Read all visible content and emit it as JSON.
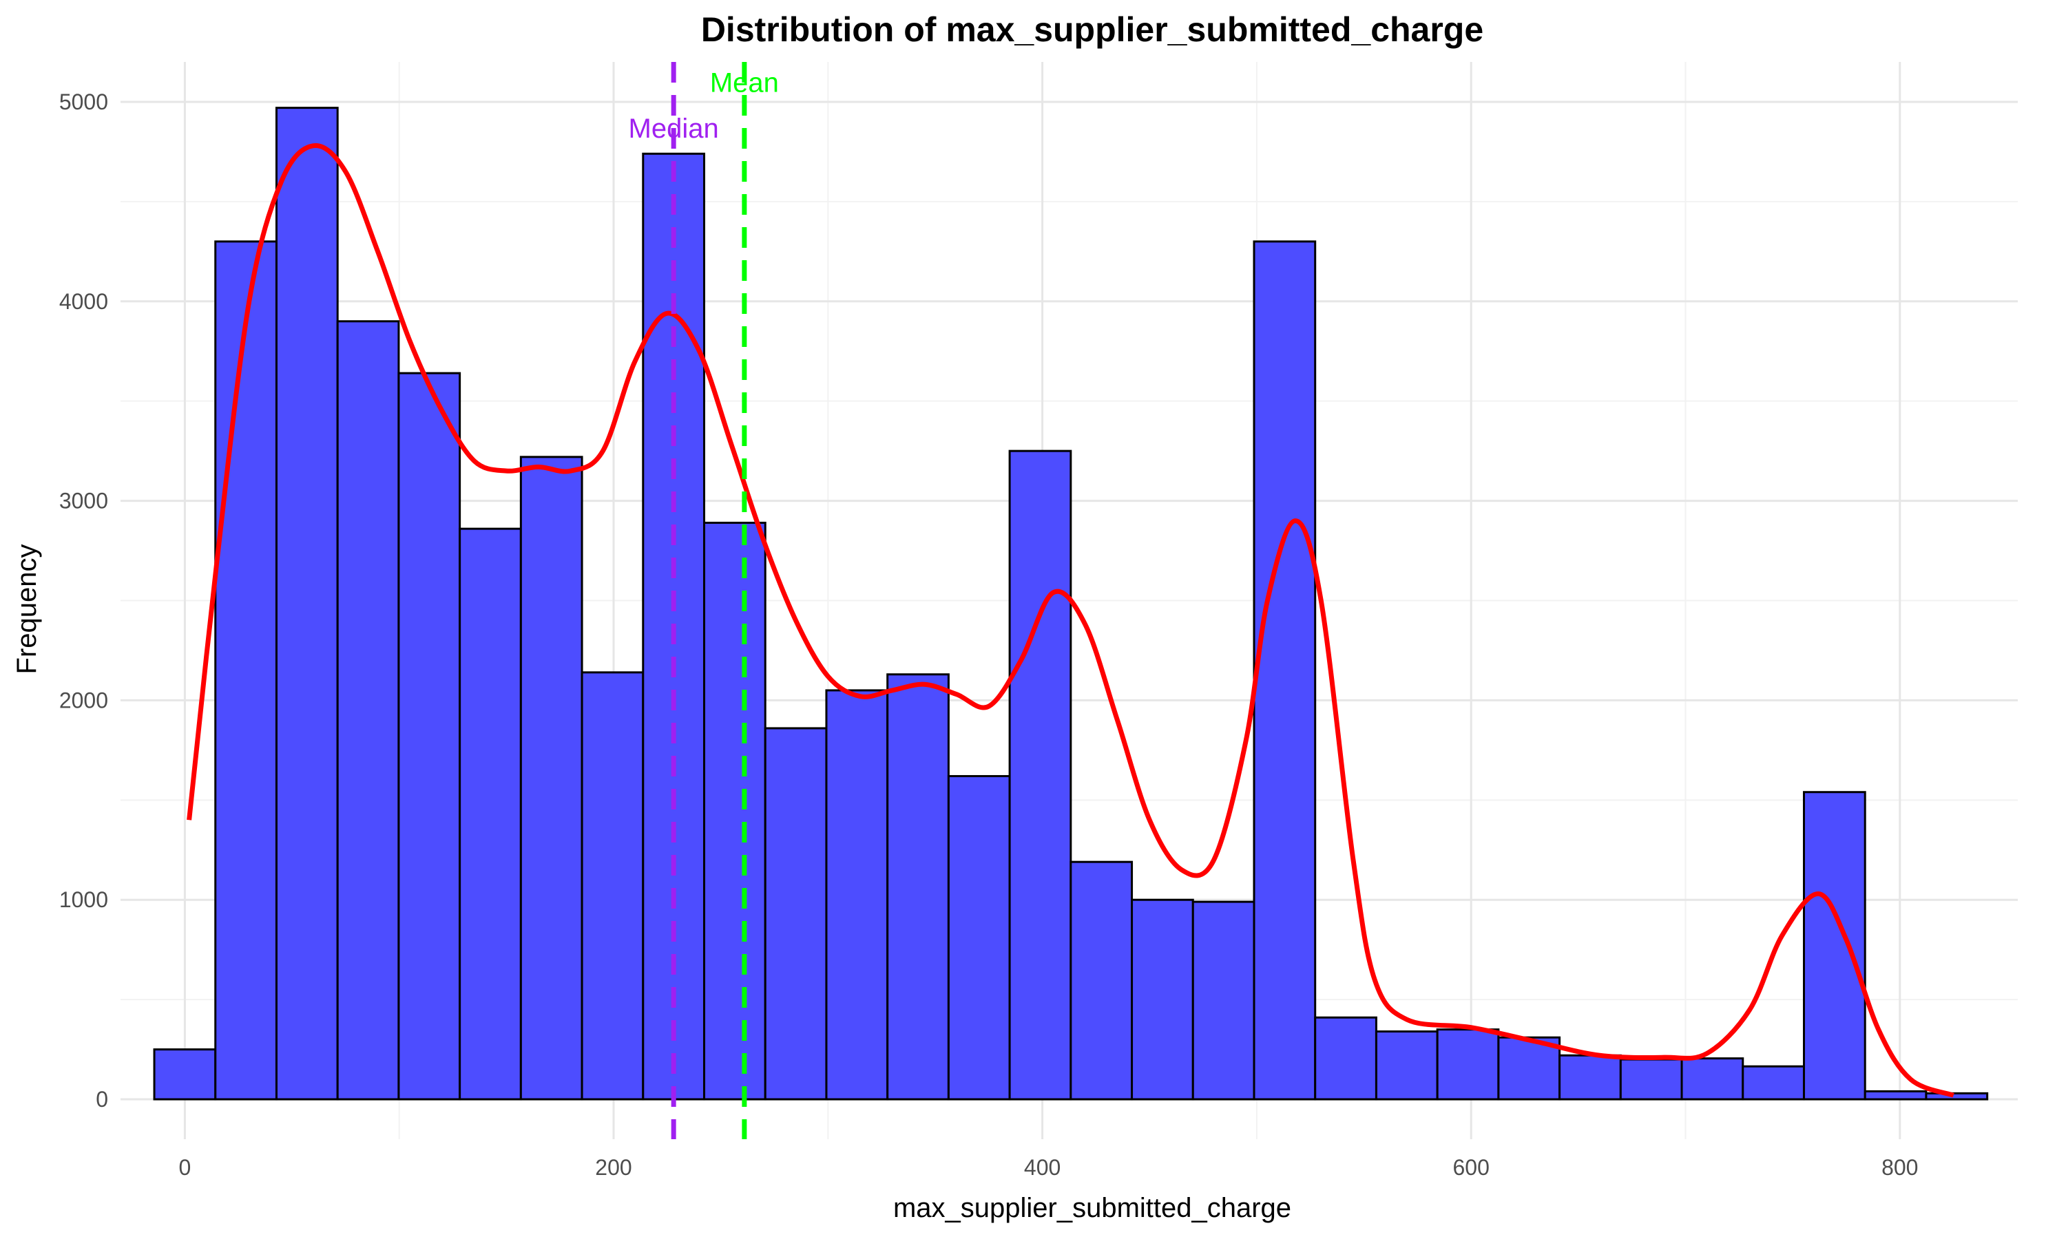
{
  "chart_data": {
    "type": "bar",
    "title": "Distribution of max_supplier_submitted_charge",
    "xlabel": "max_supplier_submitted_charge",
    "ylabel": "Frequency",
    "xlim": [
      -30,
      855
    ],
    "ylim": [
      -200,
      5200
    ],
    "x_ticks": [
      0,
      200,
      400,
      600,
      800
    ],
    "y_ticks": [
      0,
      1000,
      2000,
      3000,
      4000,
      5000
    ],
    "grid": true,
    "bin_width": 28.5,
    "bin_start": -14.25,
    "bar_fill": "#4d4dff",
    "bar_stroke": "#000000",
    "bins": [
      {
        "x": 0,
        "count": 250
      },
      {
        "x": 28.5,
        "count": 4300
      },
      {
        "x": 57,
        "count": 4970
      },
      {
        "x": 85.5,
        "count": 3900
      },
      {
        "x": 114,
        "count": 3640
      },
      {
        "x": 142.5,
        "count": 2860
      },
      {
        "x": 171,
        "count": 3220
      },
      {
        "x": 199.5,
        "count": 2140
      },
      {
        "x": 228,
        "count": 4740
      },
      {
        "x": 256.5,
        "count": 2890
      },
      {
        "x": 285,
        "count": 1860
      },
      {
        "x": 313.5,
        "count": 2050
      },
      {
        "x": 342,
        "count": 2130
      },
      {
        "x": 370.5,
        "count": 1620
      },
      {
        "x": 399,
        "count": 3250
      },
      {
        "x": 427.5,
        "count": 1190
      },
      {
        "x": 456,
        "count": 1000
      },
      {
        "x": 484.5,
        "count": 990
      },
      {
        "x": 513,
        "count": 4300
      },
      {
        "x": 541.5,
        "count": 410
      },
      {
        "x": 570,
        "count": 340
      },
      {
        "x": 598.5,
        "count": 350
      },
      {
        "x": 627,
        "count": 310
      },
      {
        "x": 655.5,
        "count": 220
      },
      {
        "x": 684,
        "count": 200
      },
      {
        "x": 712.5,
        "count": 205
      },
      {
        "x": 741,
        "count": 165
      },
      {
        "x": 769.5,
        "count": 1540
      },
      {
        "x": 798,
        "count": 40
      },
      {
        "x": 826.5,
        "count": 30
      }
    ],
    "density_curve": {
      "color": "#ff0000",
      "points": [
        [
          2,
          1400
        ],
        [
          15,
          2700
        ],
        [
          30,
          4000
        ],
        [
          45,
          4600
        ],
        [
          60,
          4780
        ],
        [
          75,
          4650
        ],
        [
          90,
          4250
        ],
        [
          105,
          3800
        ],
        [
          120,
          3450
        ],
        [
          135,
          3200
        ],
        [
          150,
          3150
        ],
        [
          165,
          3170
        ],
        [
          180,
          3150
        ],
        [
          195,
          3250
        ],
        [
          210,
          3700
        ],
        [
          225,
          3940
        ],
        [
          240,
          3750
        ],
        [
          255,
          3280
        ],
        [
          270,
          2800
        ],
        [
          285,
          2400
        ],
        [
          300,
          2120
        ],
        [
          315,
          2020
        ],
        [
          330,
          2050
        ],
        [
          345,
          2080
        ],
        [
          360,
          2030
        ],
        [
          375,
          1970
        ],
        [
          390,
          2200
        ],
        [
          405,
          2540
        ],
        [
          420,
          2380
        ],
        [
          435,
          1900
        ],
        [
          450,
          1400
        ],
        [
          465,
          1150
        ],
        [
          480,
          1200
        ],
        [
          495,
          1800
        ],
        [
          505,
          2500
        ],
        [
          518,
          2900
        ],
        [
          530,
          2500
        ],
        [
          545,
          1200
        ],
        [
          555,
          600
        ],
        [
          570,
          400
        ],
        [
          600,
          360
        ],
        [
          630,
          290
        ],
        [
          660,
          220
        ],
        [
          690,
          210
        ],
        [
          710,
          230
        ],
        [
          730,
          450
        ],
        [
          745,
          820
        ],
        [
          762,
          1030
        ],
        [
          775,
          800
        ],
        [
          790,
          350
        ],
        [
          805,
          100
        ],
        [
          825,
          20
        ]
      ]
    },
    "reference_lines": [
      {
        "label": "Median",
        "x": 228,
        "color": "#a020f0",
        "label_y": 4820
      },
      {
        "label": "Mean",
        "x": 261,
        "color": "#00ff00",
        "label_y": 5050
      }
    ],
    "legend": "none"
  }
}
